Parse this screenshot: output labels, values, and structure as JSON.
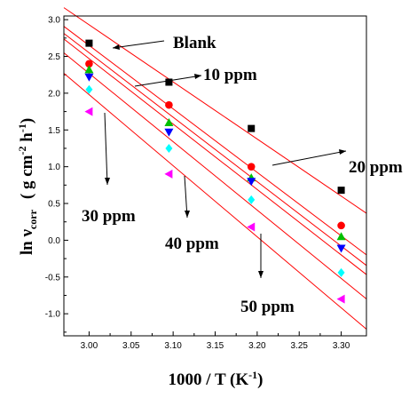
{
  "chart_data": {
    "type": "scatter",
    "xlabel_main": "1000 / T (K",
    "xlabel_sup": "-1",
    "xlabel_end": ")",
    "ylabel_main": "ln ν",
    "ylabel_sub": "corr",
    "ylabel_units": "( g cm",
    "ylabel_sup1": "-2",
    "ylabel_mid": " h",
    "ylabel_sup2": "-1",
    "ylabel_end": ")",
    "xlim": [
      2.97,
      3.33
    ],
    "ylim": [
      -1.3,
      3.05
    ],
    "xticks": [
      "3.00",
      "3.05",
      "3.10",
      "3.15",
      "3.20",
      "3.25",
      "3.30"
    ],
    "yticks": [
      "3.0",
      "2.5",
      "2.0",
      "1.5",
      "1.0",
      "0.5",
      "0.0",
      "-0.5",
      "-1.0"
    ],
    "x": [
      3.0,
      3.095,
      3.193,
      3.3
    ],
    "series": [
      {
        "name": "Blank",
        "marker": "square",
        "color": "#000000",
        "values": [
          2.68,
          2.15,
          1.52,
          0.68
        ],
        "fit": [
          2.93,
          0.6
        ]
      },
      {
        "name": "10 ppm",
        "marker": "circle",
        "color": "#ff0000",
        "values": [
          2.4,
          1.84,
          1.0,
          0.2
        ],
        "fit": [
          2.65,
          0.06
        ]
      },
      {
        "name": "20 ppm",
        "marker": "triangle-up",
        "color": "#00c000",
        "values": [
          2.32,
          1.6,
          0.85,
          0.05
        ],
        "fit": [
          2.55,
          -0.08
        ]
      },
      {
        "name": "30 ppm",
        "marker": "triangle-down",
        "color": "#0000ff",
        "values": [
          2.22,
          1.47,
          0.8,
          -0.11
        ],
        "fit": [
          2.47,
          -0.2
        ]
      },
      {
        "name": "40 ppm",
        "marker": "diamond",
        "color": "#00ffff",
        "values": [
          2.05,
          1.25,
          0.55,
          -0.44
        ],
        "fit": [
          2.27,
          -0.52
        ]
      },
      {
        "name": "50 ppm",
        "marker": "triangle-left",
        "color": "#ff00ff",
        "values": [
          1.75,
          0.9,
          0.18,
          -0.8
        ],
        "fit": [
          1.98,
          -0.92
        ]
      }
    ],
    "fit_line_color": "#ff0000",
    "annotations": [
      "Blank",
      "10 ppm",
      "20 ppm",
      "30 ppm",
      "40 ppm",
      "50 ppm"
    ]
  }
}
